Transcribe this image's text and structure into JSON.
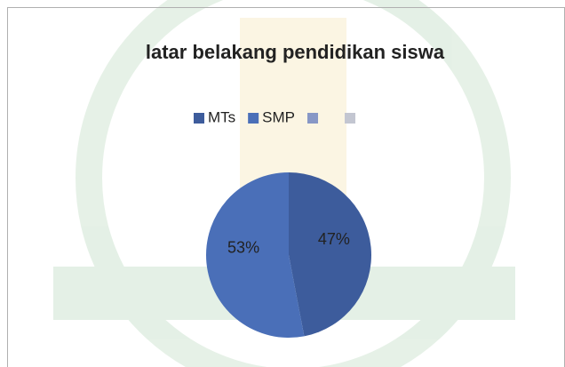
{
  "chart_data": {
    "type": "pie",
    "title": "latar belakang pendidikan siswa",
    "categories": [
      "MTs",
      "SMP",
      null,
      null
    ],
    "values": [
      47,
      53,
      null,
      null
    ],
    "value_labels": [
      "47%",
      "53%",
      null,
      null
    ],
    "colors": [
      "#3d5c9c",
      "#4a6fb8",
      "#8797c6",
      "#c3c6d1"
    ]
  }
}
